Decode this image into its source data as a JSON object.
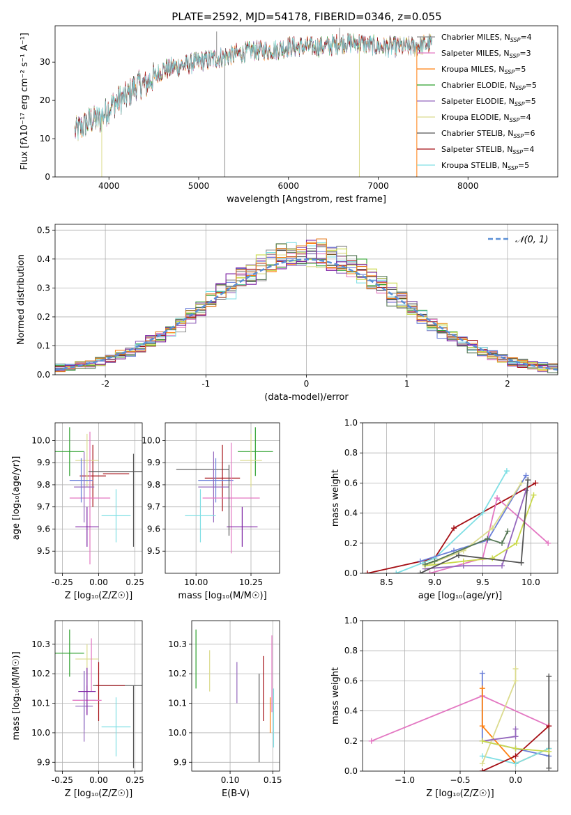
{
  "figure_title": "PLATE=2592, MJD=54178, FIBERID=0346, z=0.055",
  "colors": {
    "models": [
      "#8c8c8c",
      "#e377c2",
      "#ff7f0e",
      "#2ca02c",
      "#9467bd",
      "#dbdb8d",
      "#555555",
      "#a50f15",
      "#7fdfe4"
    ],
    "gauss": "#5a8fd6",
    "extra": [
      "#6a7fd8",
      "#cad94b",
      "#557755",
      "#7b1fa2",
      "#e67e22"
    ]
  },
  "legend": [
    {
      "name": "Chabrier MILES",
      "n": "4"
    },
    {
      "name": "Salpeter MILES",
      "n": "3"
    },
    {
      "name": "Kroupa MILES",
      "n": "5"
    },
    {
      "name": "Chabrier ELODIE",
      "n": "5"
    },
    {
      "name": "Salpeter ELODIE",
      "n": "5"
    },
    {
      "name": "Kroupa ELODIE",
      "n": "4"
    },
    {
      "name": "Chabrier STELIB",
      "n": "6"
    },
    {
      "name": "Salpeter STELIB",
      "n": "4"
    },
    {
      "name": "Kroupa STELIB",
      "n": "5"
    }
  ],
  "gauss_label": "𝒩(0, 1)",
  "chart_data": [
    {
      "id": "spectrum",
      "type": "line",
      "xlabel": "wavelength [Angstrom, rest frame]",
      "ylabel": "Flux [fλ10⁻¹⁷ erg cm⁻² s⁻¹ A⁻¹]",
      "xlim": [
        3400,
        9000
      ],
      "ylim": [
        0,
        39.5
      ],
      "xticks": [
        4000,
        5000,
        6000,
        7000,
        8000
      ],
      "yticks": [
        0,
        10,
        20,
        30
      ],
      "anchors_x": [
        3620,
        3700,
        3800,
        3900,
        4000,
        4100,
        4200,
        4300,
        4400,
        4500,
        4600,
        4800,
        5000,
        5200,
        5400,
        5600,
        5800,
        6000,
        6200,
        6400,
        6600,
        6800,
        7000,
        7200,
        7400,
        7600
      ],
      "anchors_y": [
        12,
        13,
        15,
        15,
        18,
        20,
        21,
        24,
        24,
        26,
        28,
        29,
        30,
        31,
        32,
        33,
        33,
        34,
        34,
        34,
        35,
        35,
        34,
        34,
        34,
        35
      ],
      "spikes": [
        {
          "x": 3920,
          "y": 0
        },
        {
          "x": 5290,
          "y": 0
        },
        {
          "x": 6790,
          "y": 0
        },
        {
          "x": 7430,
          "y": 0
        },
        {
          "x": 5200,
          "y": 38
        },
        {
          "x": 6570,
          "y": 39
        }
      ]
    },
    {
      "id": "residuals",
      "type": "histogram",
      "xlabel": "(data-model)/error",
      "ylabel": "Normed distribution",
      "xlim": [
        -2.5,
        2.5
      ],
      "ylim": [
        0,
        0.52
      ],
      "xticks": [
        -2,
        -1,
        0,
        1,
        2
      ],
      "yticks": [
        0.0,
        0.1,
        0.2,
        0.3,
        0.4,
        0.5
      ],
      "bin_width": 0.1,
      "shape_amplitude": 0.41,
      "shape_sigma": 0.93,
      "gaussian": {
        "mu": 0,
        "sigma": 1
      }
    },
    {
      "id": "age-Z",
      "type": "errorbar",
      "xlabel": "Z [log₁₀(Z/Z☉)]",
      "ylabel": "age  [log₁₀(age/yr)]",
      "xlim": [
        -0.3,
        0.3
      ],
      "ylim": [
        9.4,
        10.08
      ],
      "xticks": [
        -0.25,
        0.0,
        0.25
      ],
      "yticks": [
        9.5,
        9.6,
        9.7,
        9.8,
        9.9,
        10.0
      ],
      "points": [
        {
          "x": -0.04,
          "y": 9.84,
          "xerr": 0.09,
          "yerr": 0.14,
          "c": 7
        },
        {
          "x": -0.2,
          "y": 9.95,
          "xerr": 0.1,
          "yerr": 0.11,
          "c": 3
        },
        {
          "x": -0.08,
          "y": 9.91,
          "xerr": 0.08,
          "yerr": 0.12,
          "c": 5
        },
        {
          "x": -0.06,
          "y": 9.74,
          "xerr": 0.14,
          "yerr": 0.3,
          "c": 1
        },
        {
          "x": -0.12,
          "y": 9.82,
          "xerr": 0.08,
          "yerr": 0.1,
          "c": 9
        },
        {
          "x": -0.1,
          "y": 9.79,
          "xerr": 0.07,
          "yerr": 0.16,
          "c": 4
        },
        {
          "x": -0.08,
          "y": 9.61,
          "xerr": 0.08,
          "yerr": 0.09,
          "c": 12
        },
        {
          "x": 0.12,
          "y": 9.86,
          "xerr": 0.19,
          "yerr": 0.0,
          "c": 6
        },
        {
          "x": 0.12,
          "y": 9.85,
          "xerr": 0.09,
          "yerr": 0.0,
          "c": 7
        },
        {
          "x": 0.24,
          "y": 9.73,
          "xerr": 0.0,
          "yerr": 0.21,
          "c": 6
        },
        {
          "x": 0.12,
          "y": 9.66,
          "xerr": 0.1,
          "yerr": 0.12,
          "c": 8
        }
      ]
    },
    {
      "id": "age-mass",
      "type": "errorbar",
      "xlabel": "mass [log₁₀(M/M☉)]",
      "ylabel": "",
      "xlim": [
        9.86,
        10.38
      ],
      "ylim": [
        9.4,
        10.08
      ],
      "xticks": [
        10.0,
        10.25
      ],
      "yticks": [
        9.5,
        9.6,
        9.7,
        9.8,
        9.9,
        10.0
      ],
      "points": [
        {
          "x": 10.27,
          "y": 9.95,
          "xerr": 0.08,
          "yerr": 0.11,
          "c": 3
        },
        {
          "x": 10.25,
          "y": 9.91,
          "xerr": 0.05,
          "yerr": 0.12,
          "c": 5
        },
        {
          "x": 10.03,
          "y": 9.87,
          "xerr": 0.12,
          "yerr": 0.0,
          "c": 6
        },
        {
          "x": 10.12,
          "y": 9.83,
          "xerr": 0.08,
          "yerr": 0.15,
          "c": 7
        },
        {
          "x": 10.09,
          "y": 9.82,
          "xerr": 0.08,
          "yerr": 0.1,
          "c": 9
        },
        {
          "x": 10.08,
          "y": 9.79,
          "xerr": 0.07,
          "yerr": 0.16,
          "c": 4
        },
        {
          "x": 10.16,
          "y": 9.74,
          "xerr": 0.13,
          "yerr": 0.25,
          "c": 1
        },
        {
          "x": 10.02,
          "y": 9.66,
          "xerr": 0.07,
          "yerr": 0.12,
          "c": 8
        },
        {
          "x": 10.21,
          "y": 9.61,
          "xerr": 0.07,
          "yerr": 0.09,
          "c": 12
        },
        {
          "x": 10.15,
          "y": 9.73,
          "xerr": 0.0,
          "yerr": 0.16,
          "c": 6
        }
      ]
    },
    {
      "id": "sfh-age",
      "type": "line",
      "xlabel": "age  [log₁₀(age/yr)]",
      "ylabel": "mass weight",
      "xlim": [
        8.25,
        10.28
      ],
      "ylim": [
        0,
        1.0
      ],
      "xticks": [
        8.5,
        9.0,
        9.5,
        10.0
      ],
      "yticks": [
        0.0,
        0.2,
        0.4,
        0.6,
        0.8,
        1.0
      ],
      "series": [
        {
          "c": 7,
          "x": [
            8.3,
            9.0,
            9.2,
            10.05
          ],
          "y": [
            0.0,
            0.1,
            0.3,
            0.6
          ]
        },
        {
          "c": 8,
          "x": [
            8.6,
            9.0,
            9.5,
            9.75
          ],
          "y": [
            0.0,
            0.1,
            0.4,
            0.68
          ]
        },
        {
          "c": 9,
          "x": [
            8.85,
            9.2,
            9.55,
            9.95
          ],
          "y": [
            0.08,
            0.15,
            0.22,
            0.65
          ]
        },
        {
          "c": 1,
          "x": [
            8.95,
            9.5,
            9.65,
            10.18
          ],
          "y": [
            0.0,
            0.1,
            0.5,
            0.2
          ]
        },
        {
          "c": 5,
          "x": [
            8.9,
            9.3,
            9.6,
            9.9
          ],
          "y": [
            0.05,
            0.15,
            0.3,
            0.6
          ]
        },
        {
          "c": 4,
          "x": [
            8.9,
            9.3,
            9.7,
            9.95
          ],
          "y": [
            0.03,
            0.05,
            0.05,
            0.55
          ]
        },
        {
          "c": 10,
          "x": [
            8.9,
            9.3,
            9.6,
            9.85,
            10.03
          ],
          "y": [
            0.05,
            0.08,
            0.1,
            0.2,
            0.52
          ]
        },
        {
          "c": 6,
          "x": [
            8.85,
            9.25,
            9.9,
            9.97
          ],
          "y": [
            0.0,
            0.12,
            0.07,
            0.62
          ]
        },
        {
          "c": 11,
          "x": [
            8.9,
            9.0,
            9.55,
            9.7,
            9.76
          ],
          "y": [
            0.06,
            0.08,
            0.23,
            0.2,
            0.28
          ]
        }
      ]
    },
    {
      "id": "mass-Z",
      "type": "errorbar",
      "xlabel": "Z [log₁₀(Z/Z☉)]",
      "ylabel": "mass [log₁₀(M/M☉)]",
      "xlim": [
        -0.3,
        0.3
      ],
      "ylim": [
        9.87,
        10.38
      ],
      "xticks": [
        -0.25,
        0.0,
        0.25
      ],
      "yticks": [
        9.9,
        10.0,
        10.1,
        10.2,
        10.3
      ],
      "points": [
        {
          "x": -0.2,
          "y": 10.27,
          "xerr": 0.1,
          "yerr": 0.08,
          "c": 3
        },
        {
          "x": -0.08,
          "y": 10.25,
          "xerr": 0.08,
          "yerr": 0.05,
          "c": 5
        },
        {
          "x": -0.05,
          "y": 10.23,
          "xerr": 0.0,
          "yerr": 0.09,
          "c": 1
        },
        {
          "x": 0.13,
          "y": 10.16,
          "xerr": 0.17,
          "yerr": 0.0,
          "c": 6
        },
        {
          "x": 0.08,
          "y": 10.16,
          "xerr": 0.1,
          "yerr": 0.0,
          "c": 7
        },
        {
          "x": 0.0,
          "y": 10.14,
          "xerr": 0.0,
          "yerr": 0.1,
          "c": 7
        },
        {
          "x": -0.1,
          "y": 10.11,
          "xerr": 0.08,
          "yerr": 0.1,
          "c": 9
        },
        {
          "x": -0.08,
          "y": 10.11,
          "xerr": 0.1,
          "yerr": 0.05,
          "c": 1
        },
        {
          "x": -0.1,
          "y": 10.09,
          "xerr": 0.06,
          "yerr": 0.12,
          "c": 4
        },
        {
          "x": -0.08,
          "y": 10.14,
          "xerr": 0.06,
          "yerr": 0.08,
          "c": 12
        },
        {
          "x": 0.12,
          "y": 10.02,
          "xerr": 0.1,
          "yerr": 0.1,
          "c": 8
        },
        {
          "x": 0.24,
          "y": 10.02,
          "xerr": 0.0,
          "yerr": 0.14,
          "c": 6
        }
      ]
    },
    {
      "id": "mass-ebv",
      "type": "errorbar",
      "xlabel": "E(B-V)",
      "ylabel": "",
      "xlim": [
        0.055,
        0.158
      ],
      "ylim": [
        9.87,
        10.38
      ],
      "xticks": [
        0.05,
        0.1,
        0.15
      ],
      "yticks": [
        9.9,
        10.0,
        10.1,
        10.2,
        10.3
      ],
      "points": [
        {
          "x": 0.06,
          "y": 10.25,
          "xerr": 0.0,
          "yerr": 0.1,
          "c": 3
        },
        {
          "x": 0.076,
          "y": 10.21,
          "xerr": 0.0,
          "yerr": 0.07,
          "c": 5
        },
        {
          "x": 0.108,
          "y": 10.17,
          "xerr": 0.0,
          "yerr": 0.07,
          "c": 4
        },
        {
          "x": 0.134,
          "y": 10.05,
          "xerr": 0.0,
          "yerr": 0.15,
          "c": 6
        },
        {
          "x": 0.139,
          "y": 10.15,
          "xerr": 0.0,
          "yerr": 0.11,
          "c": 7
        },
        {
          "x": 0.147,
          "y": 10.06,
          "xerr": 0.0,
          "yerr": 0.06,
          "c": 2
        },
        {
          "x": 0.149,
          "y": 10.2,
          "xerr": 0.0,
          "yerr": 0.13,
          "c": 1
        },
        {
          "x": 0.151,
          "y": 10.05,
          "xerr": 0.0,
          "yerr": 0.1,
          "c": 8
        }
      ]
    },
    {
      "id": "sfh-Z",
      "type": "line",
      "xlabel": "Z [log₁₀(Z/Z☉)]",
      "ylabel": "mass weight",
      "xlim": [
        -1.38,
        0.38
      ],
      "ylim": [
        0,
        1.0
      ],
      "xticks": [
        -1.0,
        -0.5,
        0.0
      ],
      "yticks": [
        0.0,
        0.2,
        0.4,
        0.6,
        0.8,
        1.0
      ],
      "series": [
        {
          "c": 1,
          "x": [
            -1.3,
            -0.3,
            0.3
          ],
          "y": [
            0.2,
            0.5,
            0.3
          ]
        },
        {
          "c": 9,
          "x": [
            -0.3,
            -0.3,
            0.0,
            0.3
          ],
          "y": [
            0.65,
            0.2,
            0.15,
            0.1
          ]
        },
        {
          "c": 2,
          "x": [
            -0.3,
            -0.3,
            0.0,
            0.3
          ],
          "y": [
            0.55,
            0.3,
            0.05,
            0.15
          ]
        },
        {
          "c": 8,
          "x": [
            -0.3,
            0.0,
            0.3
          ],
          "y": [
            0.1,
            0.05,
            0.15
          ]
        },
        {
          "c": 5,
          "x": [
            -0.3,
            0.0,
            0.0
          ],
          "y": [
            0.05,
            0.6,
            0.68
          ]
        },
        {
          "c": 6,
          "x": [
            0.3,
            0.3
          ],
          "y": [
            0.02,
            0.63
          ]
        },
        {
          "c": 7,
          "x": [
            -0.3,
            0.0,
            0.3
          ],
          "y": [
            0.0,
            0.1,
            0.3
          ]
        },
        {
          "c": 4,
          "x": [
            -0.3,
            0.0,
            0.0
          ],
          "y": [
            0.2,
            0.23,
            0.28
          ]
        },
        {
          "c": 10,
          "x": [
            -0.3,
            0.0,
            0.3
          ],
          "y": [
            0.2,
            0.15,
            0.13
          ]
        }
      ]
    }
  ]
}
